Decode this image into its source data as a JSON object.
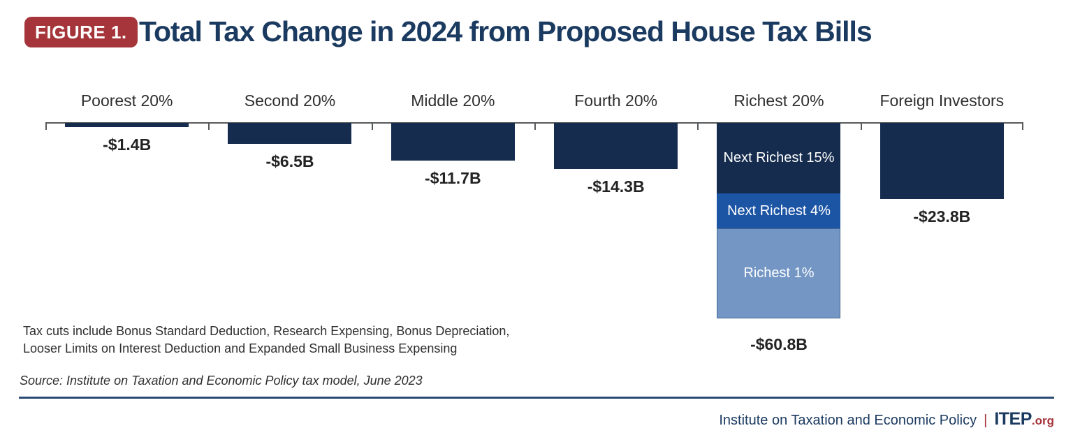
{
  "figure": {
    "label": "FIGURE 1.",
    "title": "Total Tax Change in 2024 from Proposed House Tax Bills"
  },
  "colors": {
    "navy": "#152C4E",
    "medium_blue": "#1D55A5",
    "light_blue": "#7396C5",
    "light_blue_border": "#44668E",
    "title_navy": "#1B3A60",
    "red": "#A5353A",
    "axis_gray": "#58595B",
    "text_dark": "#2E2E2E"
  },
  "chart_data": {
    "type": "bar",
    "title": "Total Tax Change in 2024 from Proposed House Tax Bills",
    "unit": "USD billions",
    "orientation": "vertical, bars extend downward from zero baseline",
    "baseline": 0,
    "grid": false,
    "legend": "none (segments labeled inline)",
    "categories": [
      "Poorest 20%",
      "Second 20%",
      "Middle 20%",
      "Fourth 20%",
      "Richest 20%",
      "Foreign Investors"
    ],
    "values": [
      -1.4,
      -6.5,
      -11.7,
      -14.3,
      -60.8,
      -23.8
    ],
    "value_labels": [
      "-$1.4B",
      "-$6.5B",
      "-$11.7B",
      "-$14.3B",
      "-$60.8B",
      "-$23.8B"
    ],
    "bars": [
      {
        "category": "Poorest 20%",
        "total": -1.4,
        "value_label": "-$1.4B",
        "segments": [
          {
            "label": "",
            "value": -1.4,
            "color": "navy"
          }
        ]
      },
      {
        "category": "Second 20%",
        "total": -6.5,
        "value_label": "-$6.5B",
        "segments": [
          {
            "label": "",
            "value": -6.5,
            "color": "navy"
          }
        ]
      },
      {
        "category": "Middle 20%",
        "total": -11.7,
        "value_label": "-$11.7B",
        "segments": [
          {
            "label": "",
            "value": -11.7,
            "color": "navy"
          }
        ]
      },
      {
        "category": "Fourth 20%",
        "total": -14.3,
        "value_label": "-$14.3B",
        "segments": [
          {
            "label": "",
            "value": -14.3,
            "color": "navy"
          }
        ]
      },
      {
        "category": "Richest 20%",
        "total": -60.8,
        "value_label": "-$60.8B",
        "segments": [
          {
            "label": "Next Richest 15%",
            "value": -21.9,
            "color": "navy"
          },
          {
            "label": "Next Richest 4%",
            "value": -10.9,
            "color": "medium_blue"
          },
          {
            "label": "Richest 1%",
            "value": -28.0,
            "color": "light_blue"
          }
        ]
      },
      {
        "category": "Foreign Investors",
        "total": -23.8,
        "value_label": "-$23.8B",
        "segments": [
          {
            "label": "",
            "value": -23.8,
            "color": "navy"
          }
        ]
      }
    ]
  },
  "footnote": {
    "line1": "Tax cuts include Bonus Standard Deduction, Research Expensing, Bonus Depreciation,",
    "line2": "Looser Limits on Interest Deduction and Expanded Small Business Expensing"
  },
  "source": "Source: Institute on Taxation and Economic Policy tax model, June 2023",
  "footer": {
    "institute": "Institute on Taxation and Economic Policy",
    "separator": "|",
    "brand": "ITEP",
    "brand_suffix": ".org"
  }
}
